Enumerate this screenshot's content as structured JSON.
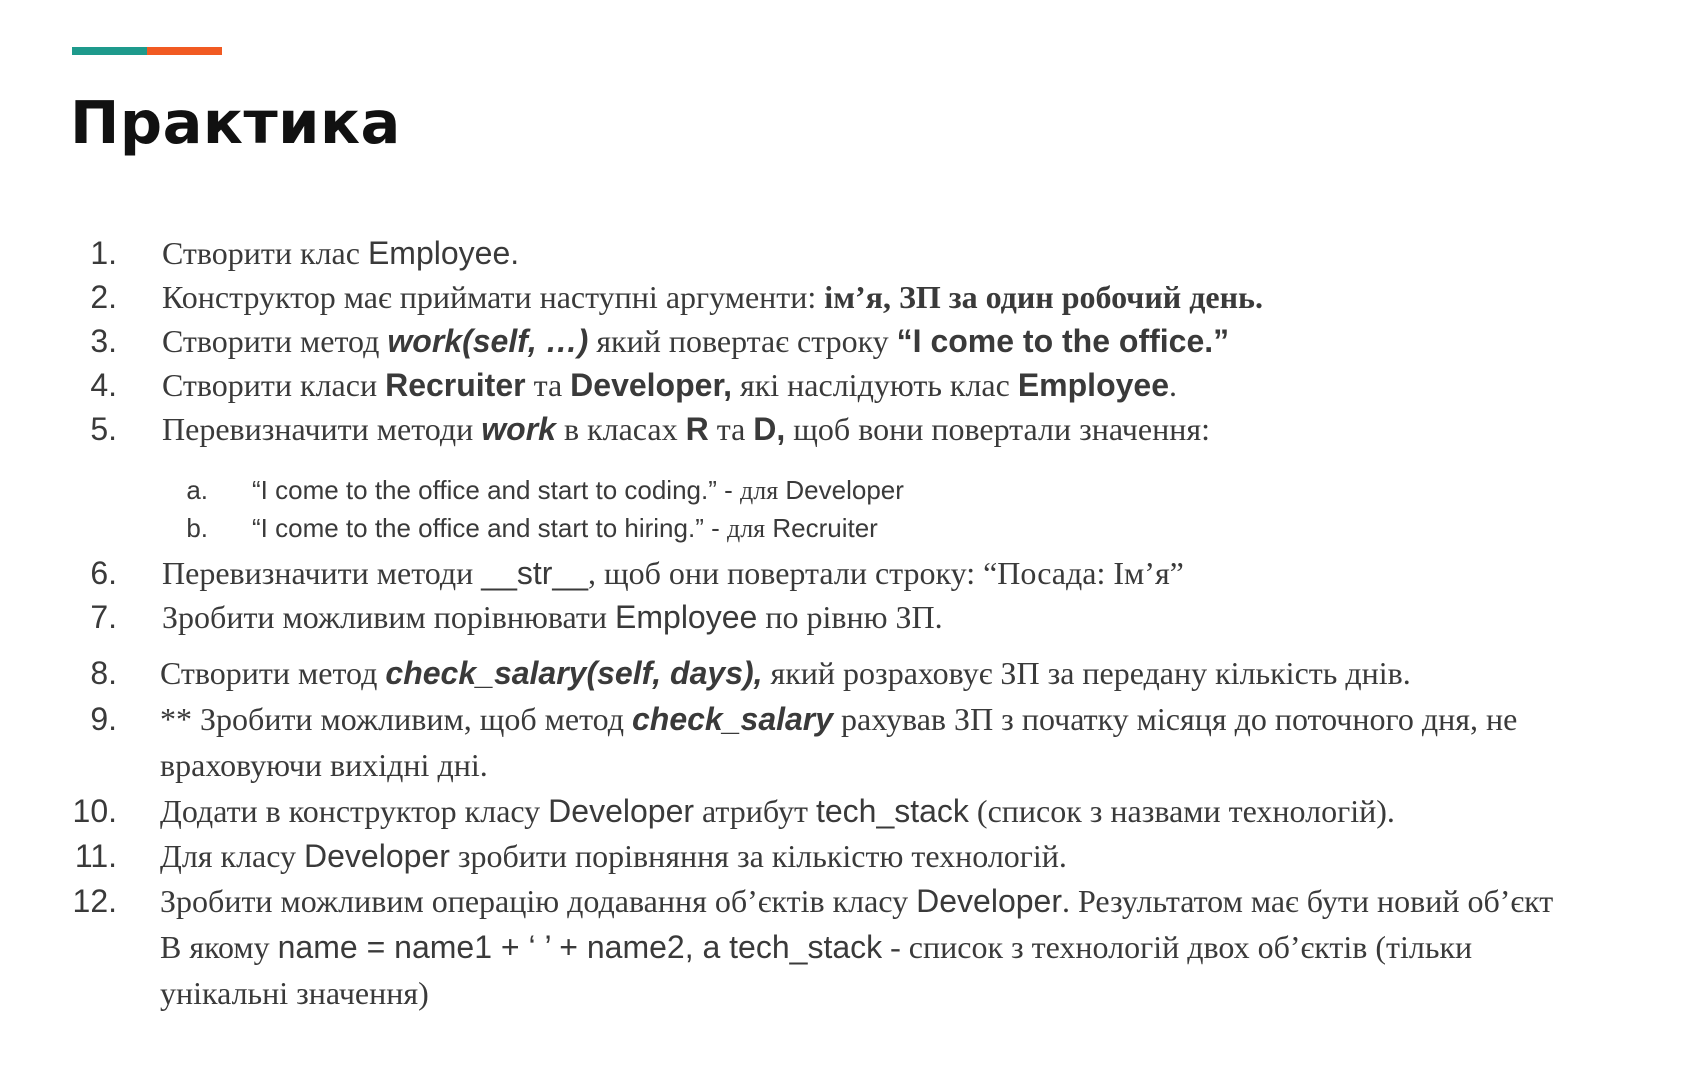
{
  "colors": {
    "accent_teal": "#1e9a8c",
    "accent_orange": "#f15a22"
  },
  "title": "Практика",
  "items": {
    "i1": {
      "num": "1.",
      "a": "Створити клас ",
      "b": "Employee."
    },
    "i2": {
      "num": "2.",
      "a": "Конструктор має приймати наступні аргументи: ",
      "b": "ім’я, ЗП за один робочий день."
    },
    "i3": {
      "num": "3.",
      "a": "Створити метод ",
      "b": "work(self, …)",
      "c": " який повертає строку ",
      "d": "“I come to the office.”"
    },
    "i4": {
      "num": "4.",
      "a": "Створити класи ",
      "b": "Recruiter",
      "c": " та ",
      "d": "Developer,",
      "e": " які наслідують клас ",
      "f": "Employee",
      "g": "."
    },
    "i5": {
      "num": "5.",
      "a": "Перевизначити методи ",
      "b": "work",
      "c": "  в класах ",
      "d": "R",
      "e": " та ",
      "f": "D,",
      "g": " щоб вони повертали значення:"
    },
    "i5a": {
      "num": "a.",
      "a": "“I come to the office and start to coding.” - ",
      "b": "для",
      "c": " Developer"
    },
    "i5b": {
      "num": "b.",
      "a": "“I come to the office and start to hiring.” - ",
      "b": "для",
      "c": " Recruiter"
    },
    "i6": {
      "num": "6.",
      "a": "Перевизначити методи  ",
      "b": "__str__",
      "c": ", щоб они повертали строку: “Посада: Ім’я”"
    },
    "i7": {
      "num": "7.",
      "a": "Зробити можливим порівнювати ",
      "b": "Employee",
      "c": " по рівню ЗП."
    },
    "i8": {
      "num": "8.",
      "a": "Створити метод ",
      "b": "check_salary(self, days),",
      "c": " який розраховує ЗП за передану кількість днів."
    },
    "i9": {
      "num": "9.",
      "a": "** Зробити можливим, щоб метод ",
      "b": "check_salary",
      "c": " рахував ЗП з початку місяця до поточного дня, не",
      "line2": "враховуючи вихідні дні."
    },
    "i10": {
      "num": "10.",
      "a": "Додати в конструктор класу ",
      "b": "Developer",
      "c": " атрибут ",
      "d": "tech_stack",
      "e": " (список з назвами технологій)."
    },
    "i11": {
      "num": "11.",
      "a": "Для класу ",
      "b": "Developer",
      "c": " зробити порівняння за кількістю технологій."
    },
    "i12": {
      "num": "12.",
      "a": "Зробити можливим операцію додавання об’єктів класу ",
      "b": "Developer",
      "c": ". Результатом має бути новий об’єкт",
      "l2a": "В якому ",
      "l2b": "name = name1 + ‘ ’ + name2, a tech_stack",
      "l2c": " - список з технологій двох об’єктів (тільки",
      "line3": "унікальні значення)"
    }
  }
}
